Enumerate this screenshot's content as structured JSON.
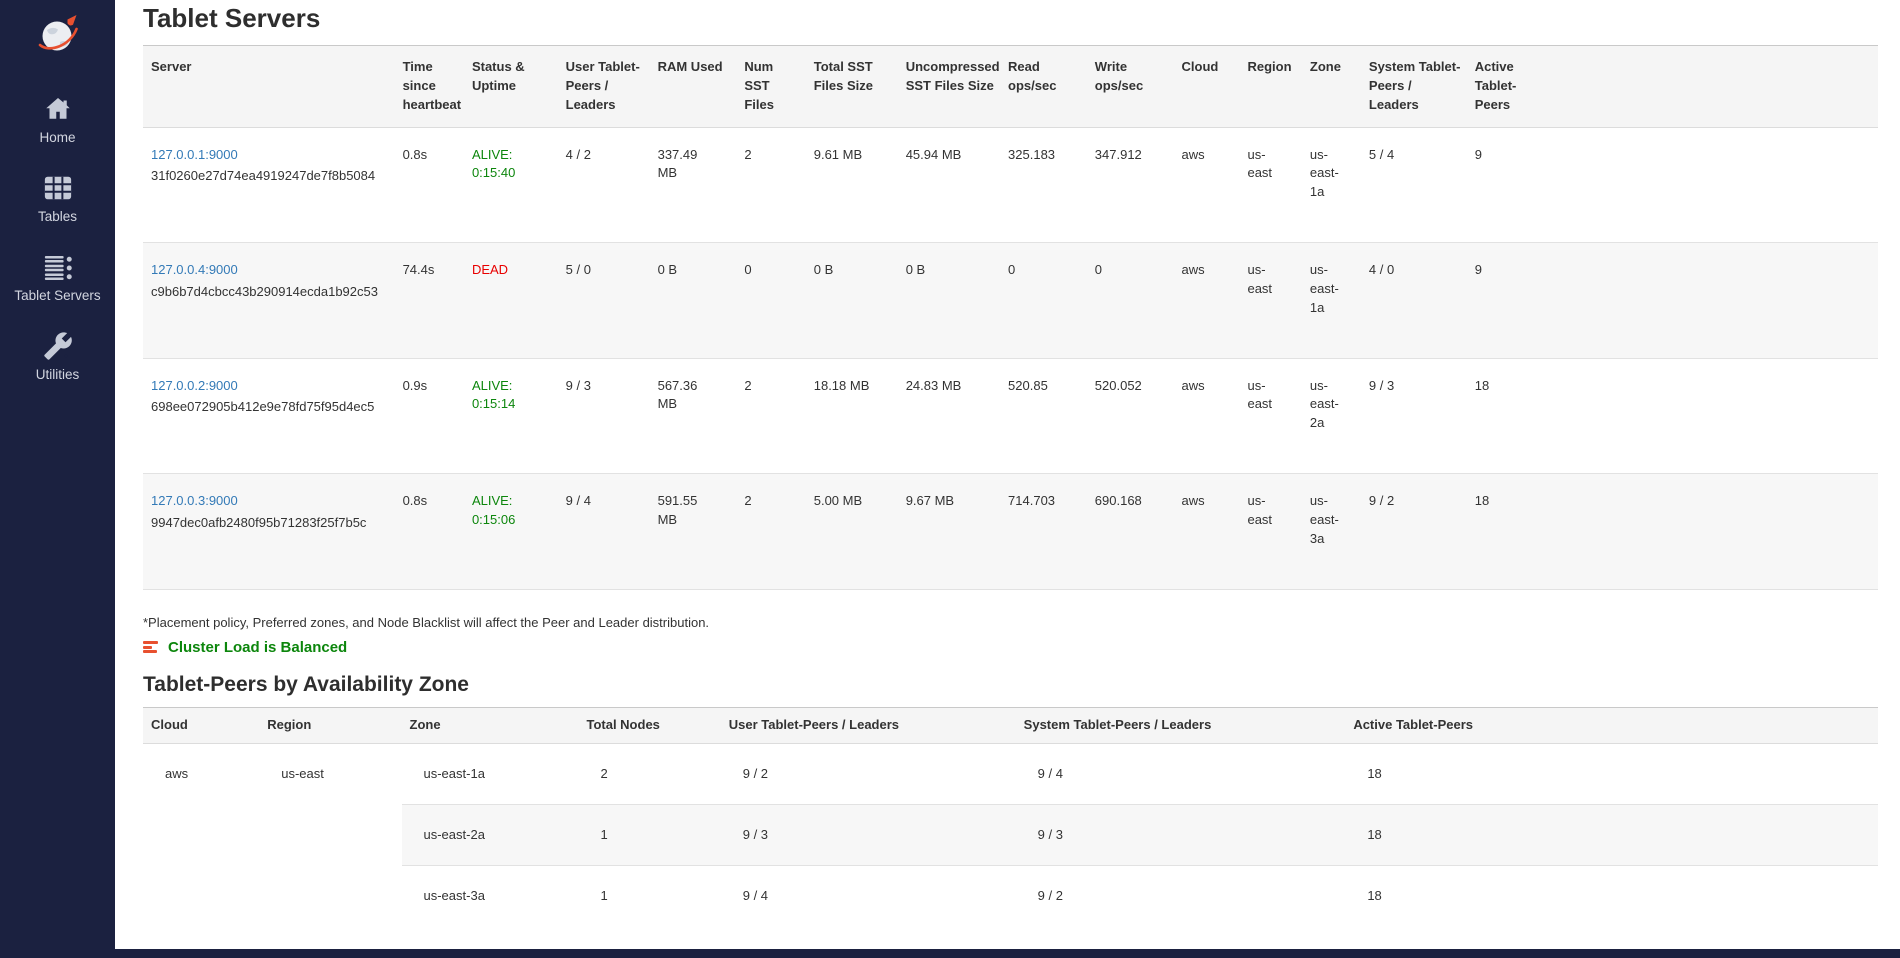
{
  "sidebar": {
    "items": [
      {
        "key": "home",
        "label": "Home"
      },
      {
        "key": "tables",
        "label": "Tables"
      },
      {
        "key": "tablet-servers",
        "label": "Tablet Servers"
      },
      {
        "key": "utilities",
        "label": "Utilities"
      }
    ]
  },
  "page": {
    "title": "Tablet Servers",
    "footnote": "*Placement policy, Preferred zones, and Node Blacklist will affect the Peer and Leader distribution.",
    "balance_status": "Cluster Load is Balanced",
    "az_section_title": "Tablet-Peers by Availability Zone"
  },
  "colors": {
    "sidebar_bg": "#1b2140",
    "link_blue": "#337ab7",
    "alive_green": "#0c860c",
    "dead_red": "#e80000",
    "balance_icon_orange": "#e8502f",
    "table_header_bg": "#f5f5f5",
    "stripe_bg": "#f7f7f7"
  },
  "servers_table": {
    "columns": [
      {
        "key": "server",
        "label": "Server"
      },
      {
        "key": "heartbeat",
        "label": "Time since heartbeat"
      },
      {
        "key": "status",
        "label": "Status & Uptime"
      },
      {
        "key": "user_peers",
        "label": "User Tablet-Peers / Leaders"
      },
      {
        "key": "ram",
        "label": "RAM Used"
      },
      {
        "key": "num_sst",
        "label": "Num SST Files"
      },
      {
        "key": "total_sst",
        "label": "Total SST Files Size"
      },
      {
        "key": "uncompressed_sst",
        "label": "Uncompressed SST Files Size"
      },
      {
        "key": "read_ops",
        "label": "Read ops/sec"
      },
      {
        "key": "write_ops",
        "label": "Write ops/sec"
      },
      {
        "key": "cloud",
        "label": "Cloud"
      },
      {
        "key": "region",
        "label": "Region"
      },
      {
        "key": "zone",
        "label": "Zone"
      },
      {
        "key": "system_peers",
        "label": "System Tablet-Peers / Leaders"
      },
      {
        "key": "active_peers",
        "label": "Active Tablet-Peers"
      }
    ],
    "rows": [
      {
        "server": "127.0.0.1:9000",
        "uuid": "31f0260e27d74ea4919247de7f8b5084",
        "heartbeat": "0.8s",
        "status": "ALIVE:",
        "uptime": "0:15:40",
        "user_peers": "4 / 2",
        "ram": "337.49 MB",
        "num_sst": "2",
        "total_sst": "9.61 MB",
        "uncompressed_sst": "45.94 MB",
        "read_ops": "325.183",
        "write_ops": "347.912",
        "cloud": "aws",
        "region": "us-east",
        "zone": "us-east-1a",
        "system_peers": "5 / 4",
        "active_peers": "9"
      },
      {
        "server": "127.0.0.4:9000",
        "uuid": "c9b6b7d4cbcc43b290914ecda1b92c53",
        "heartbeat": "74.4s",
        "status": "DEAD",
        "uptime": "",
        "user_peers": "5 / 0",
        "ram": "0 B",
        "num_sst": "0",
        "total_sst": "0 B",
        "uncompressed_sst": "0 B",
        "read_ops": "0",
        "write_ops": "0",
        "cloud": "aws",
        "region": "us-east",
        "zone": "us-east-1a",
        "system_peers": "4 / 0",
        "active_peers": "9"
      },
      {
        "server": "127.0.0.2:9000",
        "uuid": "698ee072905b412e9e78fd75f95d4ec5",
        "heartbeat": "0.9s",
        "status": "ALIVE:",
        "uptime": "0:15:14",
        "user_peers": "9 / 3",
        "ram": "567.36 MB",
        "num_sst": "2",
        "total_sst": "18.18 MB",
        "uncompressed_sst": "24.83 MB",
        "read_ops": "520.85",
        "write_ops": "520.052",
        "cloud": "aws",
        "region": "us-east",
        "zone": "us-east-2a",
        "system_peers": "9 / 3",
        "active_peers": "18"
      },
      {
        "server": "127.0.0.3:9000",
        "uuid": "9947dec0afb2480f95b71283f25f7b5c",
        "heartbeat": "0.8s",
        "status": "ALIVE:",
        "uptime": "0:15:06",
        "user_peers": "9 / 4",
        "ram": "591.55 MB",
        "num_sst": "2",
        "total_sst": "5.00 MB",
        "uncompressed_sst": "9.67 MB",
        "read_ops": "714.703",
        "write_ops": "690.168",
        "cloud": "aws",
        "region": "us-east",
        "zone": "us-east-3a",
        "system_peers": "9 / 2",
        "active_peers": "18"
      }
    ]
  },
  "az_table": {
    "columns": [
      {
        "key": "cloud",
        "label": "Cloud"
      },
      {
        "key": "region",
        "label": "Region"
      },
      {
        "key": "zone",
        "label": "Zone"
      },
      {
        "key": "total_nodes",
        "label": "Total Nodes"
      },
      {
        "key": "user_peers",
        "label": "User Tablet-Peers / Leaders"
      },
      {
        "key": "system_peers",
        "label": "System Tablet-Peers / Leaders"
      },
      {
        "key": "active_peers",
        "label": "Active Tablet-Peers"
      }
    ],
    "group": {
      "cloud": "aws",
      "region": "us-east"
    },
    "rows": [
      {
        "zone": "us-east-1a",
        "total_nodes": "2",
        "user_peers": "9 / 2",
        "system_peers": "9 / 4",
        "active_peers": "18"
      },
      {
        "zone": "us-east-2a",
        "total_nodes": "1",
        "user_peers": "9 / 3",
        "system_peers": "9 / 3",
        "active_peers": "18"
      },
      {
        "zone": "us-east-3a",
        "total_nodes": "1",
        "user_peers": "9 / 4",
        "system_peers": "9 / 2",
        "active_peers": "18"
      }
    ]
  }
}
